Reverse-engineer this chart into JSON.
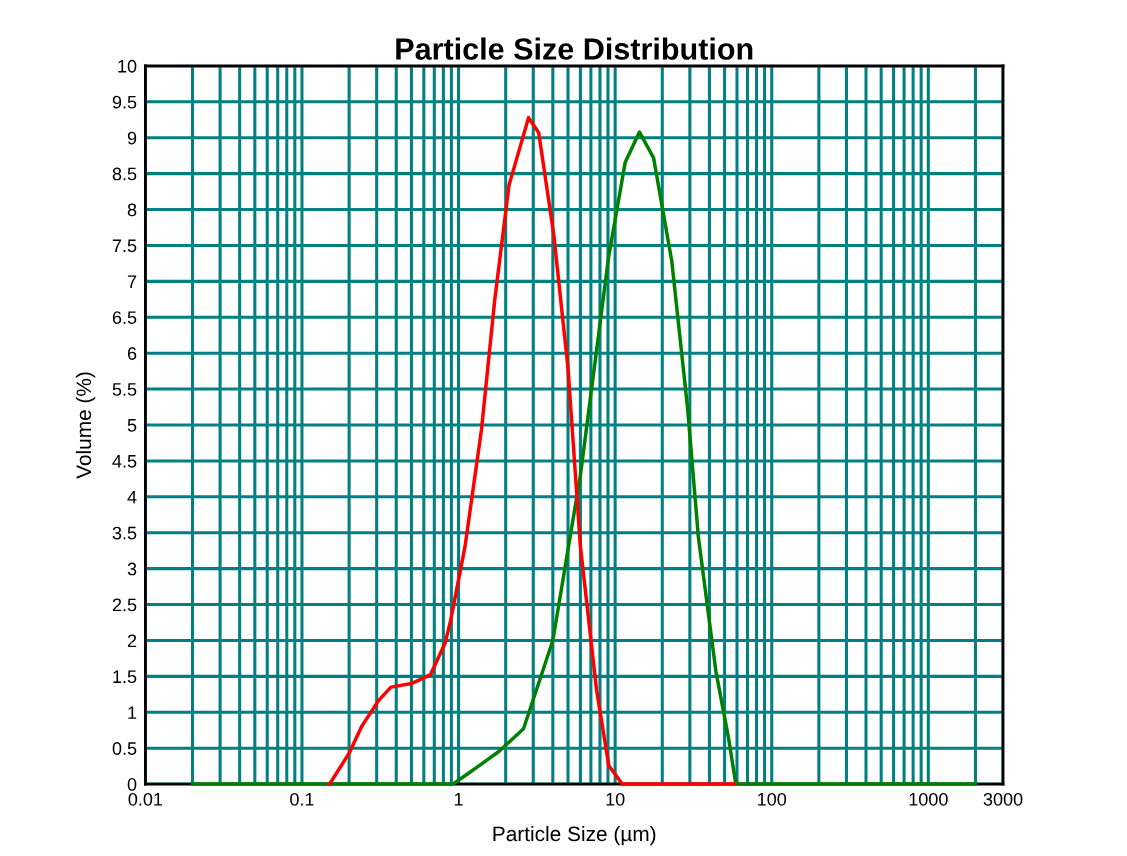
{
  "chart_data": {
    "type": "line",
    "title": "Particle Size Distribution",
    "xlabel": "Particle Size (µm)",
    "ylabel": "Volume (%)",
    "log": "x",
    "grid": true,
    "legend": false,
    "line_style": "solid",
    "marker": "none",
    "xlim": [
      0.01,
      3000
    ],
    "ylim": [
      0,
      10
    ],
    "xticks": [
      0.01,
      {
        "value": 0.02,
        "label": null
      },
      {
        "value": 0.03,
        "label": null
      },
      {
        "value": 0.04,
        "label": null
      },
      {
        "value": 0.05,
        "label": null
      },
      {
        "value": 0.06,
        "label": null
      },
      {
        "value": 0.07,
        "label": null
      },
      {
        "value": 0.08,
        "label": null
      },
      {
        "value": 0.09,
        "label": null
      },
      0.1,
      {
        "value": 0.2,
        "label": null
      },
      {
        "value": 0.3,
        "label": null
      },
      {
        "value": 0.4,
        "label": null
      },
      {
        "value": 0.5,
        "label": null
      },
      {
        "value": 0.6,
        "label": null
      },
      {
        "value": 0.7,
        "label": null
      },
      {
        "value": 0.8,
        "label": null
      },
      {
        "value": 0.9,
        "label": null
      },
      1,
      {
        "value": 2,
        "label": null
      },
      {
        "value": 3,
        "label": null
      },
      {
        "value": 4,
        "label": null
      },
      {
        "value": 5,
        "label": null
      },
      {
        "value": 6,
        "label": null
      },
      {
        "value": 7,
        "label": null
      },
      {
        "value": 8,
        "label": null
      },
      {
        "value": 9,
        "label": null
      },
      10,
      {
        "value": 20,
        "label": null
      },
      {
        "value": 30,
        "label": null
      },
      {
        "value": 40,
        "label": null
      },
      {
        "value": 50,
        "label": null
      },
      {
        "value": 60,
        "label": null
      },
      {
        "value": 70,
        "label": null
      },
      {
        "value": 80,
        "label": null
      },
      {
        "value": 90,
        "label": null
      },
      100,
      {
        "value": 200,
        "label": null
      },
      {
        "value": 300,
        "label": null
      },
      {
        "value": 400,
        "label": null
      },
      {
        "value": 500,
        "label": null
      },
      {
        "value": 600,
        "label": null
      },
      {
        "value": 700,
        "label": null
      },
      {
        "value": 800,
        "label": null
      },
      {
        "value": 900,
        "label": null
      },
      1000,
      {
        "value": 2000,
        "label": null
      },
      3000
    ],
    "yticks": [
      0,
      0.5,
      1,
      1.5,
      2,
      2.5,
      3,
      3.5,
      4,
      4.5,
      5,
      5.5,
      6,
      6.5,
      7,
      7.5,
      8,
      8.5,
      9,
      9.5,
      10
    ],
    "series": [
      {
        "color": "#008000",
        "x": [
          0.02,
          0.92,
          1.14,
          1.8,
          2.6,
          4.0,
          6.0,
          9.1,
          11.6,
          14.3,
          17.6,
          23,
          29,
          34,
          44,
          53,
          59,
          2000
        ],
        "values": [
          0,
          0,
          0.14,
          0.45,
          0.77,
          2.0,
          4.3,
          7.35,
          8.66,
          9.08,
          8.72,
          7.28,
          5.24,
          3.44,
          1.57,
          0.64,
          0,
          0
        ]
      },
      {
        "color": "#ff0000",
        "x": [
          0.15,
          0.2,
          0.24,
          0.31,
          0.37,
          0.5,
          0.66,
          0.82,
          0.89,
          1.1,
          1.4,
          1.7,
          2.1,
          2.8,
          3.25,
          4.05,
          5.0,
          6.0,
          7.6,
          9.1,
          11.1,
          58
        ],
        "values": [
          0,
          0.43,
          0.8,
          1.17,
          1.35,
          1.4,
          1.52,
          1.96,
          2.28,
          3.31,
          4.93,
          6.73,
          8.34,
          9.28,
          9.07,
          7.66,
          5.79,
          3.31,
          1.32,
          0.26,
          0,
          0
        ]
      }
    ]
  }
}
